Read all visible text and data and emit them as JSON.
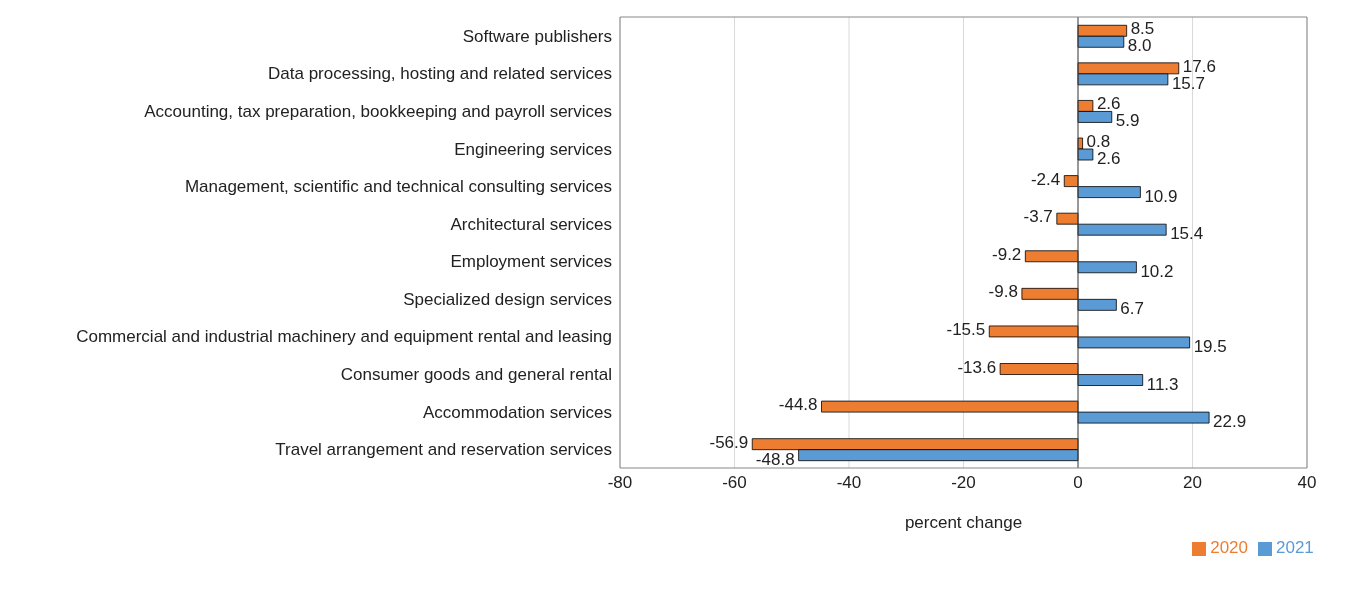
{
  "chart_data": {
    "type": "bar",
    "orientation": "horizontal",
    "xlabel": "percent change",
    "categories": [
      "Software publishers",
      "Data processing, hosting and related services",
      "Accounting, tax preparation, bookkeeping and payroll services",
      "Engineering services",
      "Management, scientific and technical consulting services",
      "Architectural services",
      "Employment services",
      "Specialized design services",
      "Commercial and industrial machinery and equipment rental and leasing",
      "Consumer goods and general rental",
      "Accommodation services",
      "Travel arrangement and reservation services"
    ],
    "series": [
      {
        "name": "2020",
        "color": "#ed7d31",
        "values": [
          8.5,
          17.6,
          2.6,
          0.8,
          -2.4,
          -3.7,
          -9.2,
          -9.8,
          -15.5,
          -13.6,
          -44.8,
          -56.9
        ],
        "value_labels": [
          "8.5",
          "17.6",
          "2.6",
          "0.8",
          "-2.4",
          "-3.7",
          "-9.2",
          "-9.8",
          "-15.5",
          "-13.6",
          "-44.8",
          "-56.9"
        ]
      },
      {
        "name": "2021",
        "color": "#5b9bd5",
        "values": [
          8.0,
          15.7,
          5.9,
          2.6,
          10.9,
          15.4,
          10.2,
          6.7,
          19.5,
          11.3,
          22.9,
          -48.8
        ],
        "value_labels": [
          "8.0",
          "15.7",
          "5.9",
          "2.6",
          "10.9",
          "15.4",
          "10.2",
          "6.7",
          "19.5",
          "11.3",
          "22.9",
          "-48.8"
        ]
      }
    ],
    "xlim": [
      -80,
      40
    ],
    "xticks": [
      -80,
      -60,
      -40,
      -20,
      0,
      20,
      40
    ],
    "grid": "x",
    "legend": "bottom"
  }
}
